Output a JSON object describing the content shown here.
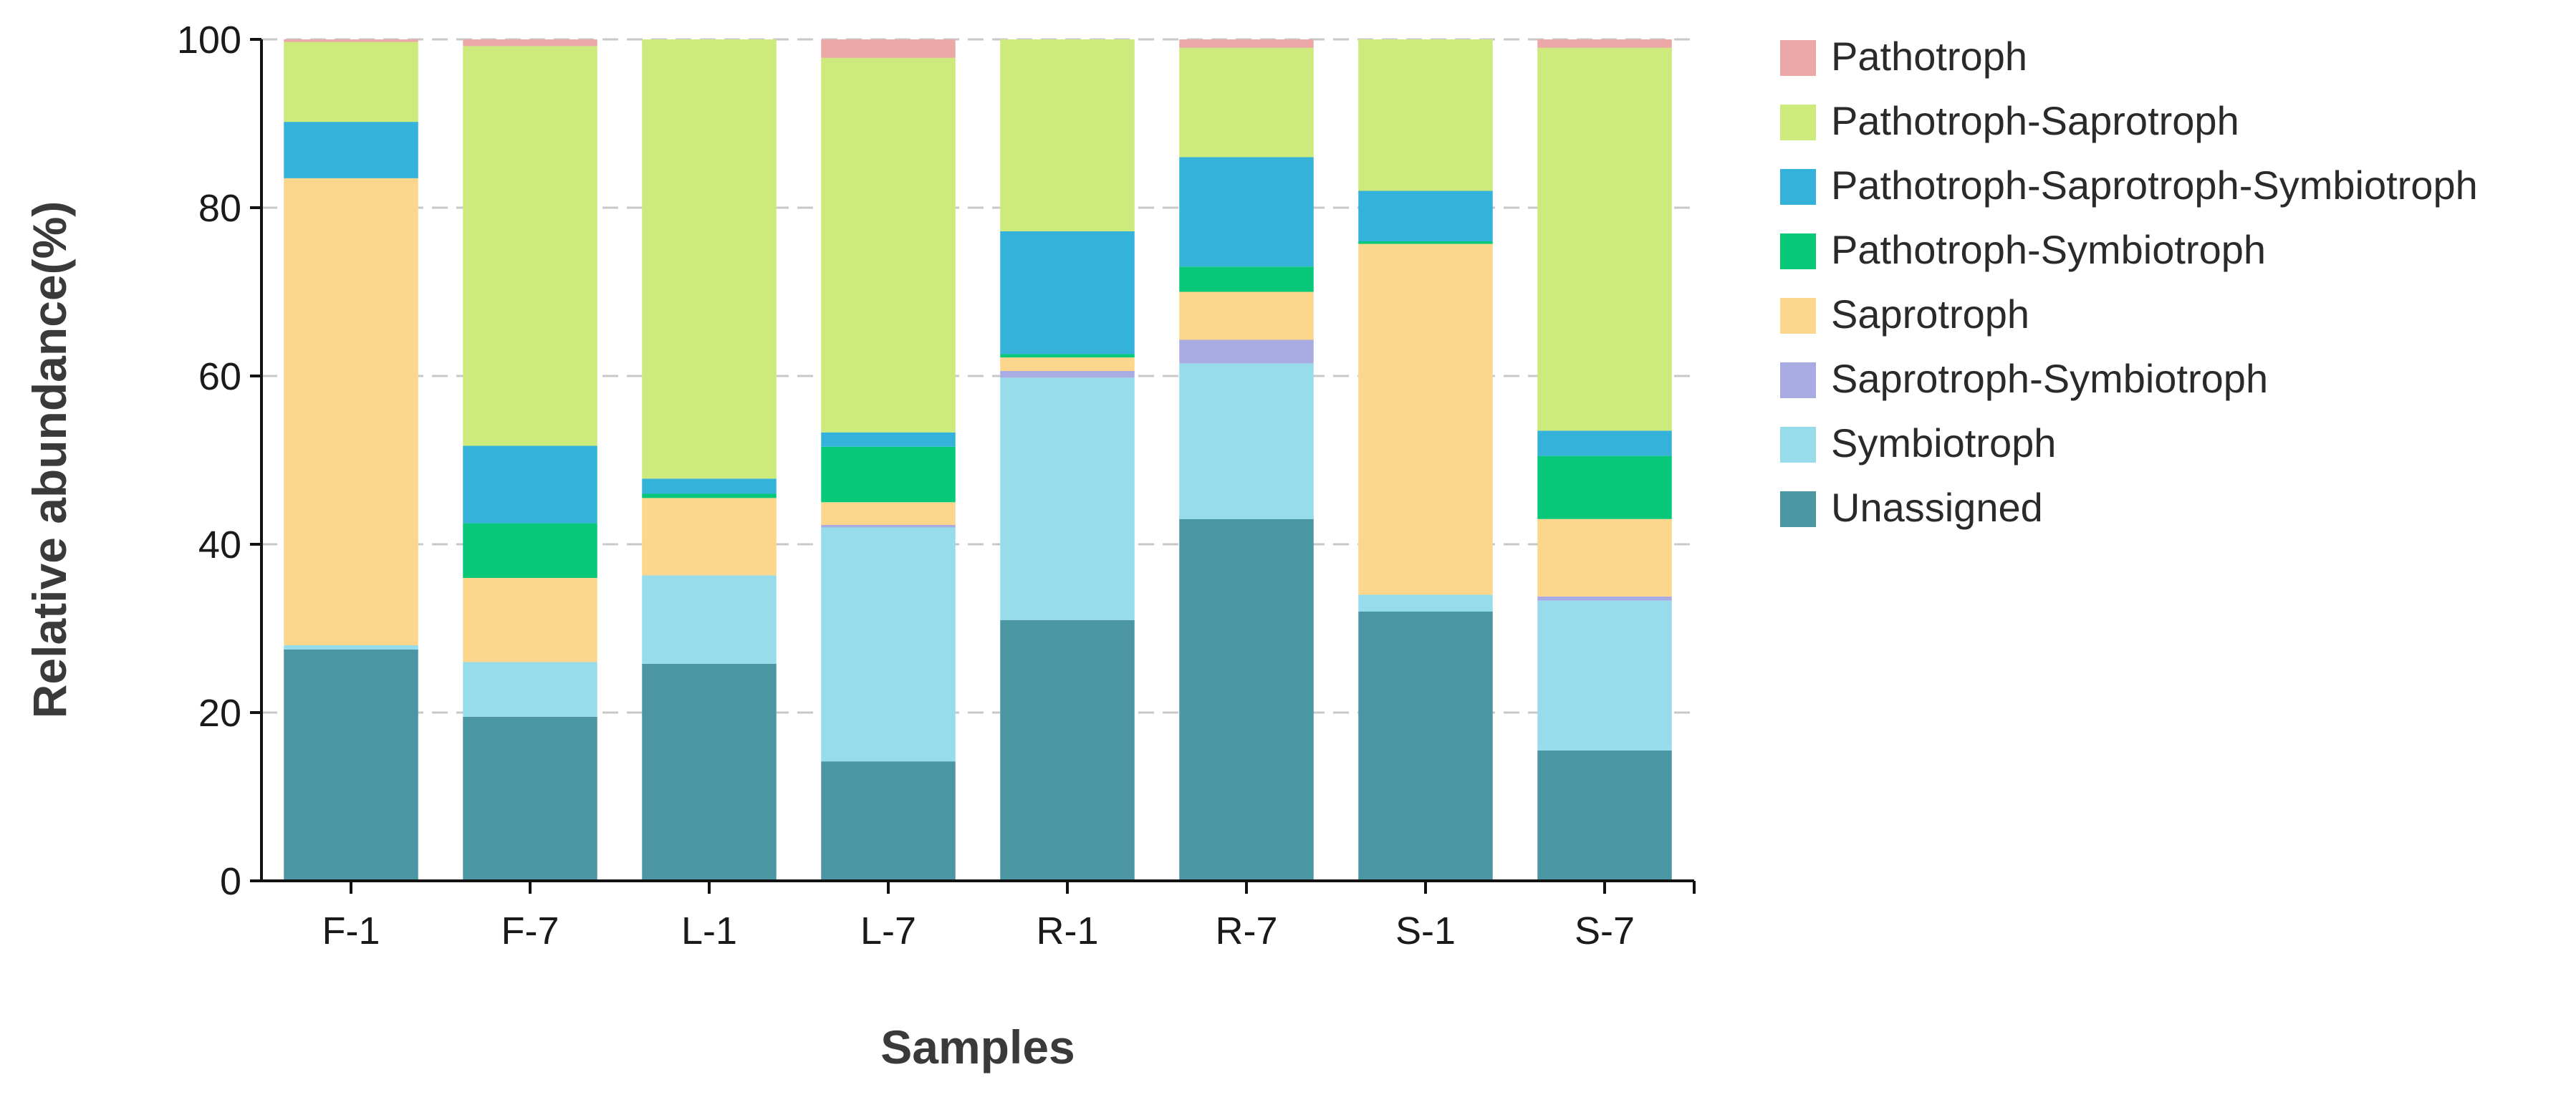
{
  "chart_data": {
    "type": "bar",
    "stacked": true,
    "xlabel": "Samples",
    "ylabel": "Relative abundance(%)",
    "ylim": [
      0,
      100
    ],
    "yticks": [
      0,
      20,
      40,
      60,
      80,
      100
    ],
    "grid": "horizontal dashed",
    "legend_position": "right",
    "categories": [
      "F-1",
      "F-7",
      "L-1",
      "L-7",
      "R-1",
      "R-7",
      "S-1",
      "S-7"
    ],
    "series": [
      {
        "name": "Unassigned",
        "color": "#4a96a2",
        "values": [
          27.5,
          19.5,
          25.8,
          14.2,
          31.0,
          43.0,
          32.0,
          15.5
        ]
      },
      {
        "name": "Symbiotroph",
        "color": "#97dceb",
        "values": [
          0.5,
          6.5,
          10.5,
          27.8,
          28.8,
          18.5,
          2.0,
          17.8
        ]
      },
      {
        "name": "Saprotroph-Symbiotroph",
        "color": "#a8ace3",
        "values": [
          0.0,
          0.0,
          0.0,
          0.3,
          0.8,
          2.8,
          0.0,
          0.5
        ]
      },
      {
        "name": "Saprotroph",
        "color": "#fcd68c",
        "values": [
          55.5,
          10.0,
          9.2,
          2.7,
          1.6,
          5.7,
          41.7,
          9.2
        ]
      },
      {
        "name": "Pathotroph-Symbiotroph",
        "color": "#07c878",
        "values": [
          0.0,
          6.5,
          0.5,
          6.6,
          0.4,
          3.0,
          0.3,
          7.5
        ]
      },
      {
        "name": "Pathotroph-Saprotroph-Symbiotroph",
        "color": "#35b2d9",
        "values": [
          6.7,
          9.2,
          1.8,
          1.7,
          14.6,
          13.0,
          6.0,
          3.0
        ]
      },
      {
        "name": "Pathotroph-Saprotroph",
        "color": "#cceb7c",
        "values": [
          9.5,
          47.5,
          52.2,
          44.5,
          22.8,
          13.0,
          18.0,
          45.5
        ]
      },
      {
        "name": "Pathotroph",
        "color": "#eca8a6",
        "values": [
          0.3,
          0.8,
          0.0,
          2.2,
          0.0,
          1.0,
          0.0,
          1.0
        ]
      }
    ],
    "legend_order": [
      "Pathotroph",
      "Pathotroph-Saprotroph",
      "Pathotroph-Saprotroph-Symbiotroph",
      "Pathotroph-Symbiotroph",
      "Saprotroph",
      "Saprotroph-Symbiotroph",
      "Symbiotroph",
      "Unassigned"
    ]
  }
}
